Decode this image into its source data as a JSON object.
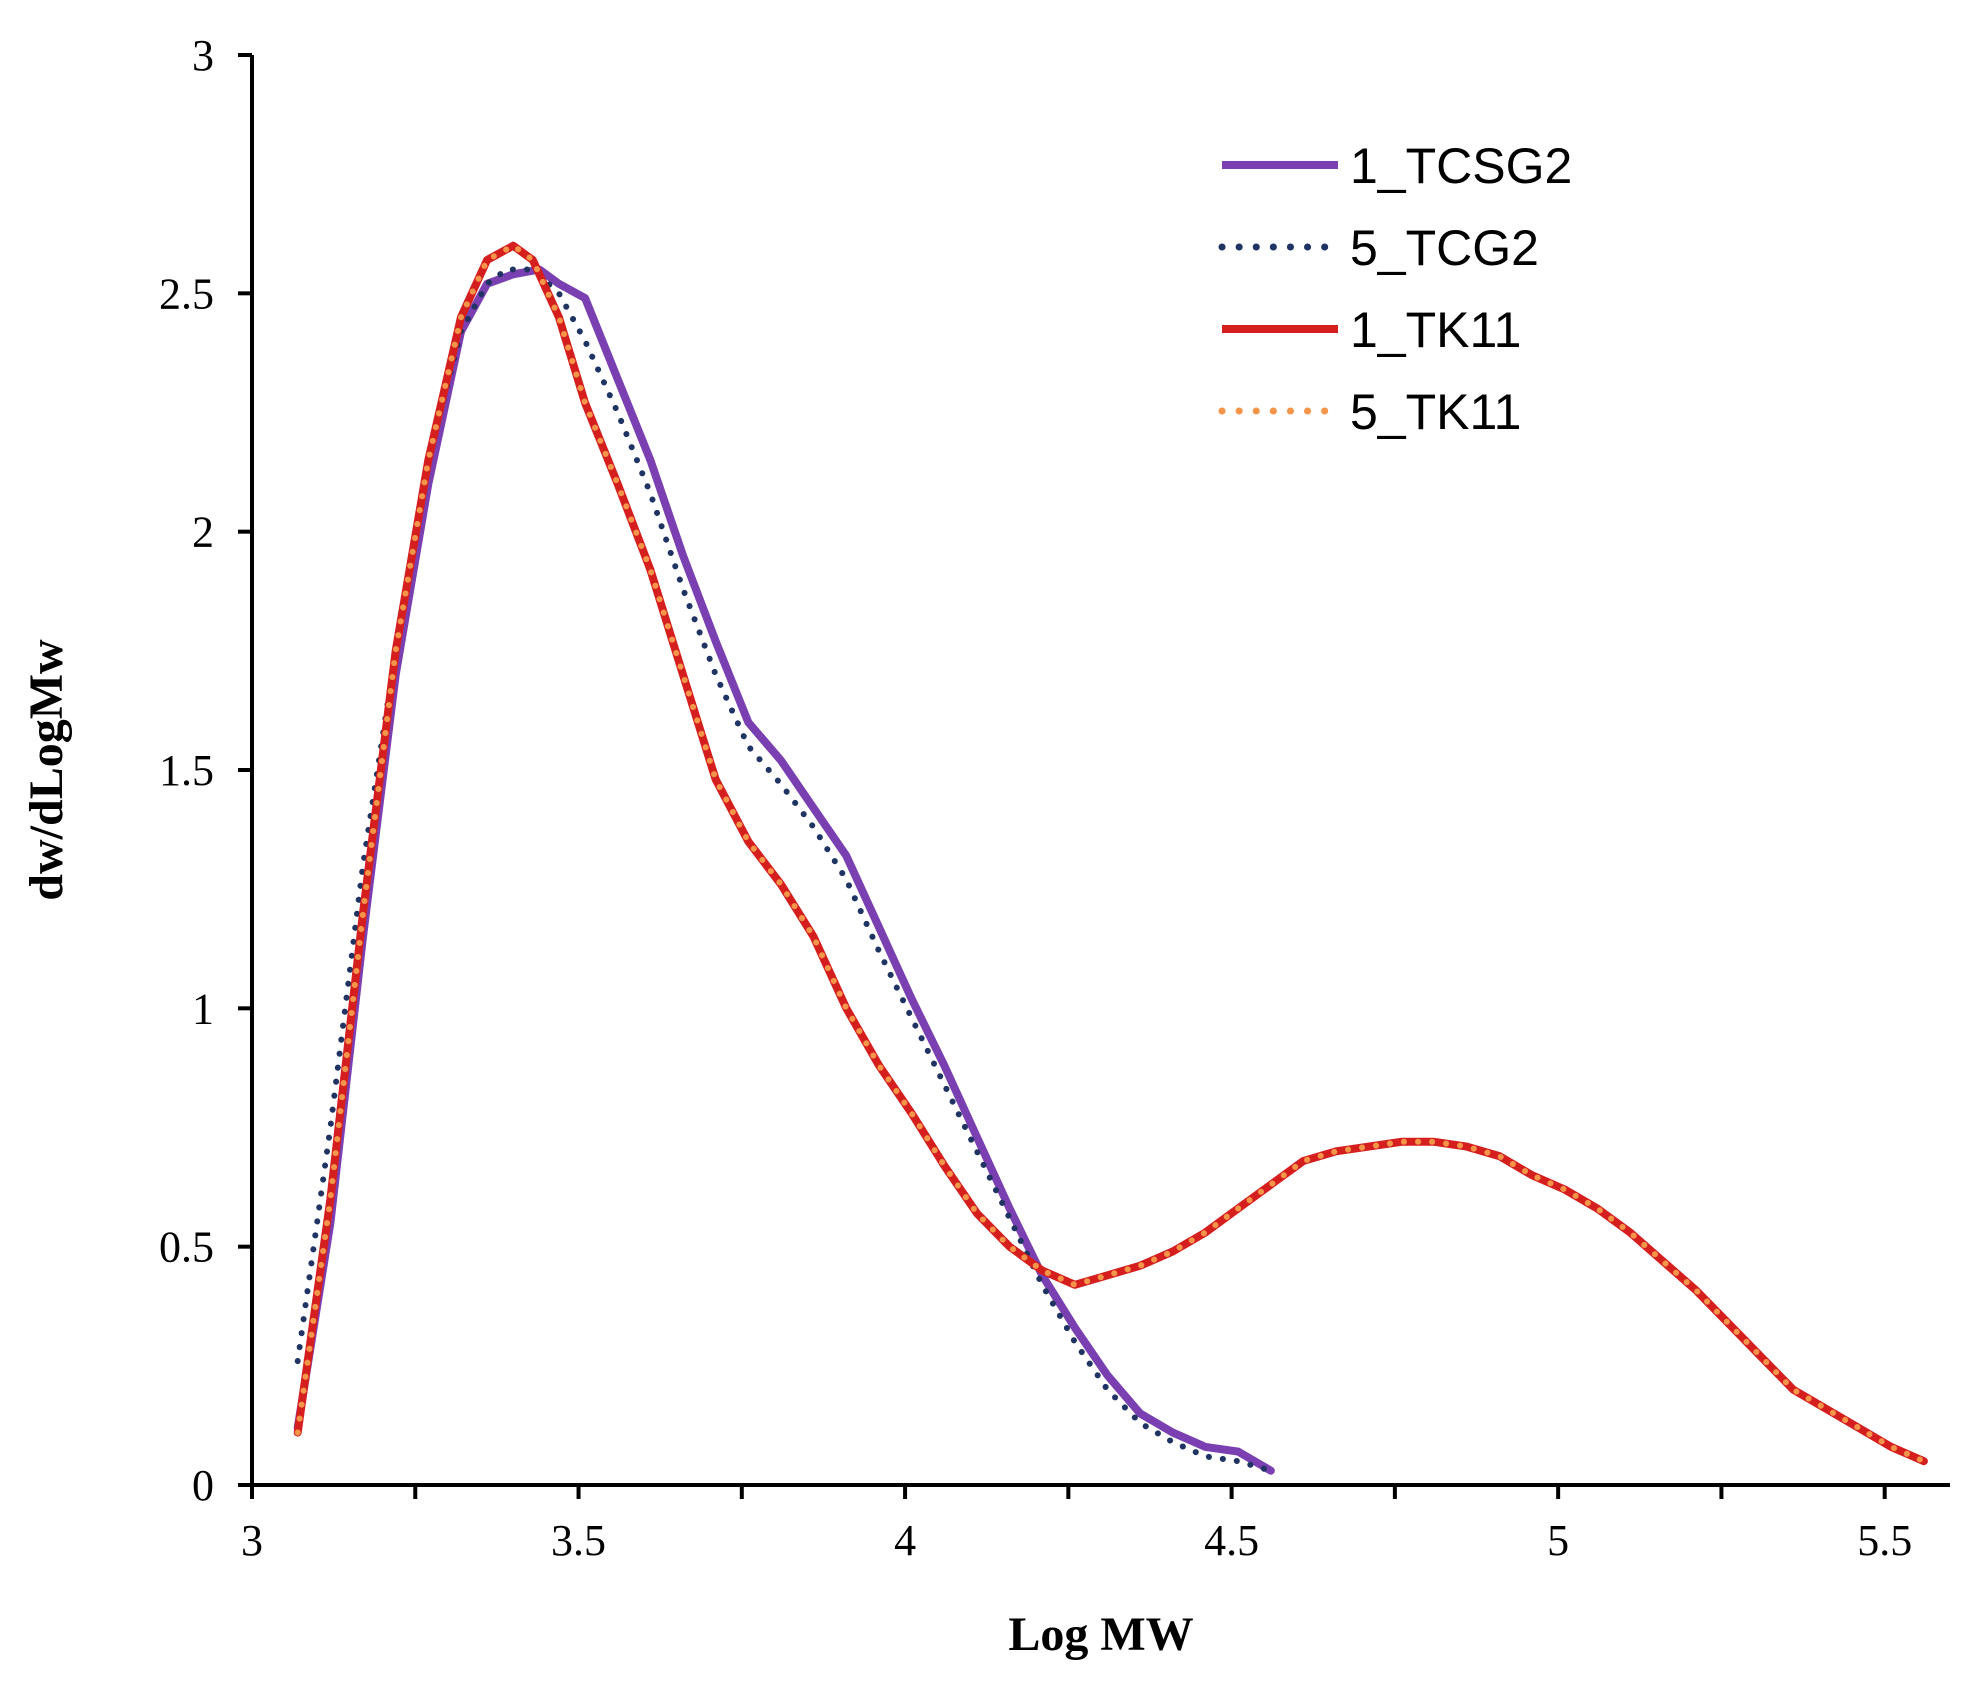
{
  "chart_data": {
    "type": "line",
    "title": "",
    "xlabel": "Log MW",
    "ylabel": "dw/dLogMw",
    "xlim": [
      3,
      5.6
    ],
    "ylim": [
      0,
      3
    ],
    "xticks": [
      3,
      3.5,
      4,
      4.5,
      5,
      5.5
    ],
    "xtick_labels": [
      "3",
      "3.5",
      "4",
      "4.5",
      "5",
      "5.5"
    ],
    "yticks": [
      0,
      0.5,
      1,
      1.5,
      2,
      2.5,
      3
    ],
    "ytick_labels": [
      "0",
      "0.5",
      "1",
      "1.5",
      "2",
      "2.5",
      "3"
    ],
    "grid": false,
    "legend_position": "top-right",
    "series": [
      {
        "name": "1_TCSG2",
        "color": "#7a3fb0",
        "style": "solid",
        "points": [
          [
            3.07,
            0.12
          ],
          [
            3.12,
            0.55
          ],
          [
            3.17,
            1.15
          ],
          [
            3.22,
            1.7
          ],
          [
            3.27,
            2.1
          ],
          [
            3.32,
            2.42
          ],
          [
            3.36,
            2.52
          ],
          [
            3.4,
            2.54
          ],
          [
            3.44,
            2.55
          ],
          [
            3.47,
            2.52
          ],
          [
            3.51,
            2.49
          ],
          [
            3.56,
            2.32
          ],
          [
            3.61,
            2.15
          ],
          [
            3.66,
            1.95
          ],
          [
            3.71,
            1.77
          ],
          [
            3.76,
            1.6
          ],
          [
            3.81,
            1.52
          ],
          [
            3.86,
            1.42
          ],
          [
            3.91,
            1.32
          ],
          [
            3.96,
            1.17
          ],
          [
            4.01,
            1.02
          ],
          [
            4.06,
            0.88
          ],
          [
            4.11,
            0.73
          ],
          [
            4.16,
            0.58
          ],
          [
            4.21,
            0.44
          ],
          [
            4.26,
            0.33
          ],
          [
            4.31,
            0.23
          ],
          [
            4.36,
            0.15
          ],
          [
            4.41,
            0.11
          ],
          [
            4.46,
            0.08
          ],
          [
            4.51,
            0.07
          ],
          [
            4.56,
            0.03
          ]
        ]
      },
      {
        "name": "5_TCG2",
        "color": "#1f3462",
        "style": "dotted",
        "points": [
          [
            3.07,
            0.26
          ],
          [
            3.12,
            0.75
          ],
          [
            3.17,
            1.3
          ],
          [
            3.22,
            1.75
          ],
          [
            3.27,
            2.15
          ],
          [
            3.32,
            2.42
          ],
          [
            3.36,
            2.52
          ],
          [
            3.39,
            2.55
          ],
          [
            3.43,
            2.55
          ],
          [
            3.47,
            2.5
          ],
          [
            3.51,
            2.4
          ],
          [
            3.56,
            2.25
          ],
          [
            3.61,
            2.08
          ],
          [
            3.66,
            1.88
          ],
          [
            3.71,
            1.7
          ],
          [
            3.76,
            1.55
          ],
          [
            3.81,
            1.47
          ],
          [
            3.86,
            1.38
          ],
          [
            3.91,
            1.27
          ],
          [
            3.96,
            1.12
          ],
          [
            4.01,
            0.98
          ],
          [
            4.06,
            0.84
          ],
          [
            4.11,
            0.7
          ],
          [
            4.16,
            0.56
          ],
          [
            4.21,
            0.42
          ],
          [
            4.26,
            0.3
          ],
          [
            4.31,
            0.2
          ],
          [
            4.36,
            0.13
          ],
          [
            4.41,
            0.09
          ],
          [
            4.46,
            0.06
          ],
          [
            4.51,
            0.05
          ],
          [
            4.56,
            0.03
          ]
        ]
      },
      {
        "name": "1_TK11",
        "color": "#d51f1f",
        "style": "solid",
        "points": [
          [
            3.07,
            0.11
          ],
          [
            3.12,
            0.6
          ],
          [
            3.17,
            1.2
          ],
          [
            3.22,
            1.75
          ],
          [
            3.27,
            2.15
          ],
          [
            3.32,
            2.45
          ],
          [
            3.36,
            2.57
          ],
          [
            3.4,
            2.6
          ],
          [
            3.43,
            2.57
          ],
          [
            3.47,
            2.45
          ],
          [
            3.51,
            2.27
          ],
          [
            3.56,
            2.1
          ],
          [
            3.61,
            1.92
          ],
          [
            3.66,
            1.7
          ],
          [
            3.71,
            1.48
          ],
          [
            3.76,
            1.35
          ],
          [
            3.81,
            1.26
          ],
          [
            3.86,
            1.15
          ],
          [
            3.91,
            1.0
          ],
          [
            3.96,
            0.88
          ],
          [
            4.01,
            0.78
          ],
          [
            4.06,
            0.67
          ],
          [
            4.11,
            0.57
          ],
          [
            4.16,
            0.5
          ],
          [
            4.21,
            0.45
          ],
          [
            4.26,
            0.42
          ],
          [
            4.31,
            0.44
          ],
          [
            4.36,
            0.46
          ],
          [
            4.41,
            0.49
          ],
          [
            4.46,
            0.53
          ],
          [
            4.51,
            0.58
          ],
          [
            4.56,
            0.63
          ],
          [
            4.61,
            0.68
          ],
          [
            4.66,
            0.7
          ],
          [
            4.71,
            0.71
          ],
          [
            4.76,
            0.72
          ],
          [
            4.81,
            0.72
          ],
          [
            4.86,
            0.71
          ],
          [
            4.91,
            0.69
          ],
          [
            4.96,
            0.65
          ],
          [
            5.01,
            0.62
          ],
          [
            5.06,
            0.58
          ],
          [
            5.11,
            0.53
          ],
          [
            5.16,
            0.47
          ],
          [
            5.21,
            0.41
          ],
          [
            5.26,
            0.34
          ],
          [
            5.31,
            0.27
          ],
          [
            5.36,
            0.2
          ],
          [
            5.41,
            0.16
          ],
          [
            5.46,
            0.12
          ],
          [
            5.51,
            0.08
          ],
          [
            5.56,
            0.05
          ]
        ]
      },
      {
        "name": "5_TK11",
        "color": "#f4954a",
        "style": "dotted",
        "points": [
          [
            3.07,
            0.11
          ],
          [
            3.12,
            0.6
          ],
          [
            3.17,
            1.2
          ],
          [
            3.22,
            1.75
          ],
          [
            3.27,
            2.15
          ],
          [
            3.32,
            2.45
          ],
          [
            3.36,
            2.57
          ],
          [
            3.4,
            2.6
          ],
          [
            3.43,
            2.57
          ],
          [
            3.47,
            2.45
          ],
          [
            3.51,
            2.27
          ],
          [
            3.56,
            2.1
          ],
          [
            3.61,
            1.92
          ],
          [
            3.66,
            1.7
          ],
          [
            3.71,
            1.48
          ],
          [
            3.76,
            1.35
          ],
          [
            3.81,
            1.26
          ],
          [
            3.86,
            1.15
          ],
          [
            3.91,
            1.0
          ],
          [
            3.96,
            0.88
          ],
          [
            4.01,
            0.78
          ],
          [
            4.06,
            0.67
          ],
          [
            4.11,
            0.57
          ],
          [
            4.16,
            0.5
          ],
          [
            4.21,
            0.45
          ],
          [
            4.26,
            0.42
          ],
          [
            4.31,
            0.44
          ],
          [
            4.36,
            0.46
          ],
          [
            4.41,
            0.49
          ],
          [
            4.46,
            0.53
          ],
          [
            4.51,
            0.58
          ],
          [
            4.56,
            0.63
          ],
          [
            4.61,
            0.68
          ],
          [
            4.66,
            0.7
          ],
          [
            4.71,
            0.71
          ],
          [
            4.76,
            0.72
          ],
          [
            4.81,
            0.72
          ],
          [
            4.86,
            0.71
          ],
          [
            4.91,
            0.69
          ],
          [
            4.96,
            0.65
          ],
          [
            5.01,
            0.62
          ],
          [
            5.06,
            0.58
          ],
          [
            5.11,
            0.53
          ],
          [
            5.16,
            0.47
          ],
          [
            5.21,
            0.41
          ],
          [
            5.26,
            0.34
          ],
          [
            5.31,
            0.27
          ],
          [
            5.36,
            0.2
          ],
          [
            5.41,
            0.16
          ],
          [
            5.46,
            0.12
          ],
          [
            5.51,
            0.08
          ],
          [
            5.56,
            0.05
          ]
        ]
      }
    ]
  }
}
